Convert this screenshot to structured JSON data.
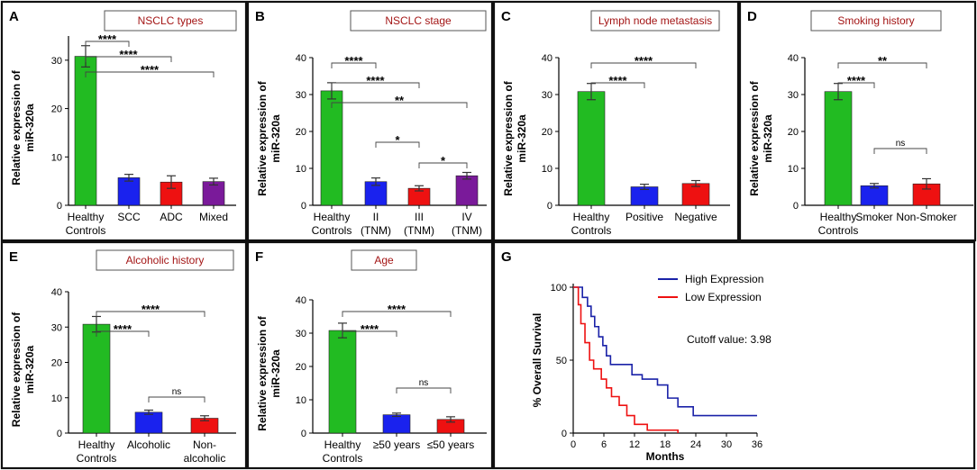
{
  "chart_data": [
    {
      "id": "A",
      "type": "bar",
      "title": "NSCLC types",
      "ylabel": "Relative expression of miR-320a",
      "ylim": [
        0,
        35
      ],
      "categories": [
        [
          "Healthy",
          "Controls"
        ],
        [
          "SCC"
        ],
        [
          "ADC"
        ],
        [
          "Mixed"
        ]
      ],
      "values": [
        30.8,
        5.7,
        4.8,
        4.9
      ],
      "errors": [
        2.2,
        0.7,
        1.3,
        0.7
      ],
      "colors": [
        "#22bb22",
        "#1a22ee",
        "#ee1111",
        "#7a1a9a"
      ],
      "comparisons": [
        {
          "a": 0,
          "b": 1,
          "label": "****"
        },
        {
          "a": 0,
          "b": 2,
          "label": "****"
        },
        {
          "a": 0,
          "b": 3,
          "label": "****"
        }
      ],
      "yticks": [
        0,
        10,
        20,
        30
      ]
    },
    {
      "id": "B",
      "type": "bar",
      "title": "NSCLC stage",
      "ylabel": "Relative expression of miR-320a",
      "ylim": [
        0,
        40
      ],
      "categories": [
        [
          "Healthy",
          "Controls"
        ],
        [
          "II",
          "(TNM)"
        ],
        [
          "III",
          "(TNM)"
        ],
        [
          "IV",
          "(TNM)"
        ]
      ],
      "values": [
        31.0,
        6.4,
        4.6,
        8.0
      ],
      "errors": [
        2.2,
        1.0,
        0.7,
        0.9
      ],
      "colors": [
        "#22bb22",
        "#1a22ee",
        "#ee1111",
        "#7a1a9a"
      ],
      "comparisons": [
        {
          "a": 0,
          "b": 1,
          "label": "****"
        },
        {
          "a": 0,
          "b": 2,
          "label": "****"
        },
        {
          "a": 0,
          "b": 3,
          "label": "**"
        },
        {
          "a": 1,
          "b": 2,
          "label": "*"
        },
        {
          "a": 2,
          "b": 3,
          "label": "*"
        }
      ],
      "yticks": [
        0,
        10,
        20,
        30,
        40
      ]
    },
    {
      "id": "C",
      "type": "bar",
      "title": "Lymph node metastasis",
      "ylabel": "Relative expression of miR-320a",
      "ylim": [
        0,
        40
      ],
      "categories": [
        [
          "Healthy",
          "Controls"
        ],
        [
          "Positive"
        ],
        [
          "Negative"
        ]
      ],
      "values": [
        30.8,
        5.0,
        5.9
      ],
      "errors": [
        2.2,
        0.7,
        0.8
      ],
      "colors": [
        "#22bb22",
        "#1a22ee",
        "#ee1111"
      ],
      "comparisons": [
        {
          "a": 0,
          "b": 1,
          "label": "****"
        },
        {
          "a": 0,
          "b": 2,
          "label": "****"
        }
      ],
      "yticks": [
        0,
        10,
        20,
        30,
        40
      ]
    },
    {
      "id": "D",
      "type": "bar",
      "title": "Smoking history",
      "ylabel": "Relative expression of miR-320a",
      "ylim": [
        0,
        40
      ],
      "categories": [
        [
          "Healthy",
          "Controls"
        ],
        [
          "Smoker"
        ],
        [
          "Non-Smoker"
        ]
      ],
      "values": [
        30.8,
        5.3,
        5.8
      ],
      "errors": [
        2.2,
        0.6,
        1.4
      ],
      "colors": [
        "#22bb22",
        "#1a22ee",
        "#ee1111"
      ],
      "comparisons": [
        {
          "a": 0,
          "b": 1,
          "label": "****"
        },
        {
          "a": 0,
          "b": 2,
          "label": "**"
        },
        {
          "a": 1,
          "b": 2,
          "label": "ns"
        }
      ],
      "yticks": [
        0,
        10,
        20,
        30,
        40
      ]
    },
    {
      "id": "E",
      "type": "bar",
      "title": "Alcoholic history",
      "ylabel": "Relative expression of miR-320a",
      "ylim": [
        0,
        40
      ],
      "categories": [
        [
          "Healthy",
          "Controls"
        ],
        [
          "Alcoholic"
        ],
        [
          "Non-",
          "alcoholic"
        ]
      ],
      "values": [
        30.8,
        5.9,
        4.2
      ],
      "errors": [
        2.2,
        0.6,
        0.7
      ],
      "colors": [
        "#22bb22",
        "#1a22ee",
        "#ee1111"
      ],
      "comparisons": [
        {
          "a": 0,
          "b": 1,
          "label": "****"
        },
        {
          "a": 0,
          "b": 2,
          "label": "****"
        },
        {
          "a": 1,
          "b": 2,
          "label": "ns"
        }
      ],
      "yticks": [
        0,
        10,
        20,
        30,
        40
      ]
    },
    {
      "id": "F",
      "type": "bar",
      "title": "Age",
      "ylabel": "Relative expression of miR-320a",
      "ylim": [
        0,
        40
      ],
      "categories": [
        [
          "Healthy",
          "Controls"
        ],
        [
          "≥50 years"
        ],
        [
          "≤50 years"
        ]
      ],
      "values": [
        30.8,
        5.5,
        4.1
      ],
      "errors": [
        2.2,
        0.5,
        0.8
      ],
      "colors": [
        "#22bb22",
        "#1a22ee",
        "#ee1111"
      ],
      "comparisons": [
        {
          "a": 0,
          "b": 1,
          "label": "****"
        },
        {
          "a": 0,
          "b": 2,
          "label": "****"
        },
        {
          "a": 1,
          "b": 2,
          "label": "ns"
        }
      ],
      "yticks": [
        0,
        10,
        20,
        30,
        40
      ]
    },
    {
      "id": "G",
      "type": "line",
      "xlabel": "Months",
      "ylabel": "% Overall Survival",
      "xlim": [
        0,
        36
      ],
      "ylim": [
        0,
        100
      ],
      "xticks": [
        0,
        6,
        12,
        18,
        24,
        30,
        36
      ],
      "yticks": [
        0,
        50,
        100
      ],
      "annotation": "Cutoff value: 3.98",
      "series": [
        {
          "name": "High Expression",
          "color": "#1a22a8",
          "x": [
            0,
            1.8,
            2.8,
            3.5,
            4.2,
            5.0,
            5.8,
            6.5,
            7.3,
            8.5,
            11.5,
            13.5,
            16.5,
            18.5,
            20.5,
            23.5,
            36
          ],
          "y": [
            100,
            93,
            87,
            80,
            73,
            66,
            60,
            53,
            47,
            47,
            40,
            37,
            33,
            24,
            18,
            12,
            12
          ]
        },
        {
          "name": "Low Expression",
          "color": "#ee1111",
          "x": [
            0,
            1.0,
            1.5,
            2.3,
            3.2,
            4.0,
            5.5,
            6.5,
            7.5,
            9.0,
            10.5,
            12.0,
            13.5,
            14.5,
            20.5
          ],
          "y": [
            100,
            88,
            75,
            62,
            50,
            44,
            37,
            31,
            25,
            19,
            12,
            6,
            6,
            2,
            0
          ]
        }
      ]
    }
  ]
}
